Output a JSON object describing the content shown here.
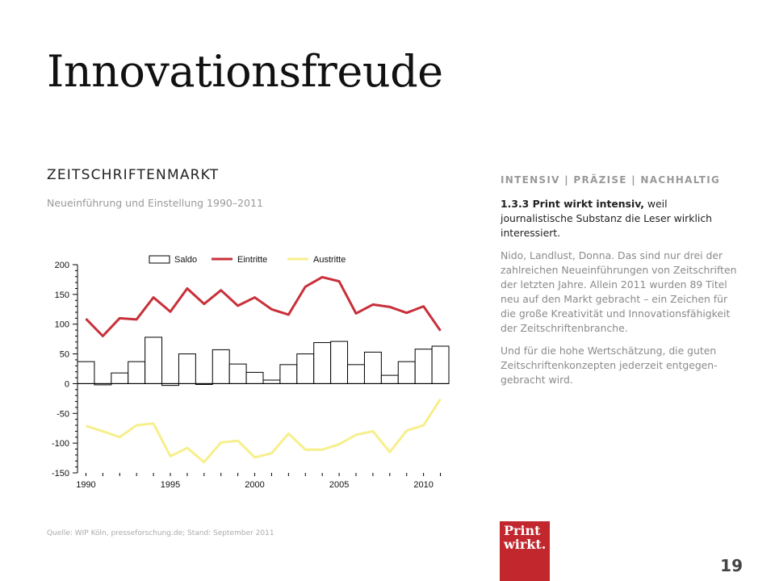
{
  "title": "Innovationsfreude",
  "section_heading": "ZEITSCHRIFTENMARKT",
  "subheading": "Neueinführung und Einstellung 1990–2011",
  "right_column": {
    "tagline": "INTENSIV | PRÄZISE | NACHHALTIG",
    "lead_bold": "1.3.3 Print wirkt intensiv,",
    "lead_rest": " weil journalistische Substanz die Leser wirklich interessiert.",
    "paragraph1": "Nido, Landlust, Donna. Das sind nur drei der zahlreichen Neueinführungen von Zeitschriften der letzten Jahre. Allein 2011 wurden 89 Titel neu auf den Markt gebracht – ein Zeichen für die große Kreativität und Innovationsfähigkeit der Zeitschriftenbranche.",
    "paragraph2": "Und für die hohe Wertschätzung, die guten Zeitschriftenkonzepten jederzeit entgegen-gebracht wird."
  },
  "source": "Quelle: WIP Köln, presseforschung.de; Stand: September 2011",
  "logo": {
    "line1": "Print",
    "line2": "wirkt."
  },
  "page_number": "19",
  "colors": {
    "eintritte": "#c8303a",
    "austritte": "#f7ef8c",
    "saldo_fill": "#ffffff",
    "saldo_stroke": "#000000",
    "logo_bg": "#c1272d"
  },
  "chart_data": {
    "type": "bar",
    "title": "",
    "xlabel": "",
    "ylabel": "",
    "x": [
      1990,
      1991,
      1992,
      1993,
      1994,
      1995,
      1996,
      1997,
      1998,
      1999,
      2000,
      2001,
      2002,
      2003,
      2004,
      2005,
      2006,
      2007,
      2008,
      2009,
      2010,
      2011
    ],
    "x_ticks": [
      "1990",
      "1995",
      "2000",
      "2005",
      "2010"
    ],
    "y_ticks": [
      "200",
      "150",
      "100",
      "50",
      "0",
      "-50",
      "-100",
      "-150"
    ],
    "ylim": [
      -150,
      200
    ],
    "legend_position": "top",
    "series": [
      {
        "name": "Saldo",
        "kind": "bar",
        "values": [
          37,
          -2,
          18,
          37,
          78,
          -3,
          50,
          0,
          57,
          33,
          19,
          6,
          32,
          50,
          69,
          71,
          32,
          53,
          14,
          37,
          58,
          63
        ]
      },
      {
        "name": "Eintritte",
        "kind": "line",
        "values": [
          109,
          80,
          110,
          108,
          145,
          121,
          160,
          134,
          157,
          131,
          145,
          125,
          116,
          163,
          179,
          172,
          118,
          133,
          129,
          119,
          130,
          89
        ]
      },
      {
        "name": "Austritte",
        "kind": "line",
        "values": [
          -71,
          -80,
          -90,
          -70,
          -67,
          -122,
          -108,
          -132,
          -99,
          -96,
          -124,
          -117,
          -84,
          -111,
          -111,
          -102,
          -86,
          -80,
          -115,
          -79,
          -70,
          -26
        ]
      }
    ],
    "grid": false
  }
}
